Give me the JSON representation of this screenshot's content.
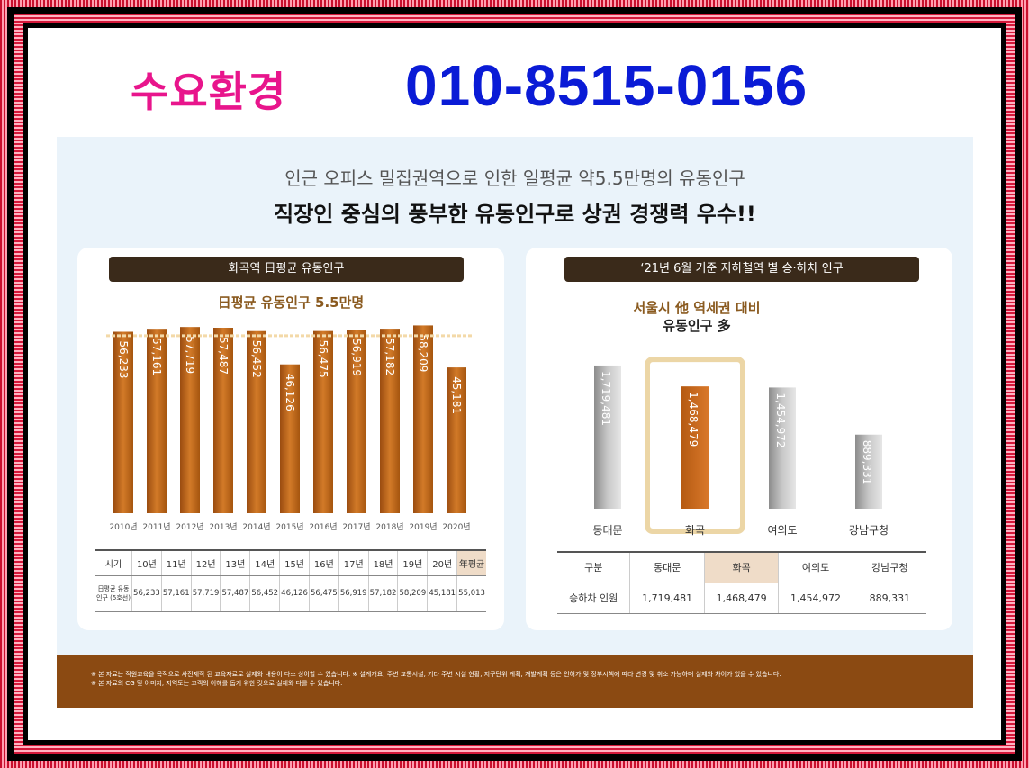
{
  "header": {
    "title": "수요환경",
    "phone": "010-8515-0156"
  },
  "headline": {
    "line1": "인근 오피스 밀집권역으로 인한 일평균 약5.5만명의 유동인구",
    "line2": "직장인 중심의 풍부한 유동인구로 상권 경쟁력 우수!!"
  },
  "left_card": {
    "title": "화곡역 日평균 유동인구",
    "subtitle": "日평균 유동인구 5.5만명",
    "table": {
      "row1_label": "시기",
      "headers": [
        "10년",
        "11년",
        "12년",
        "13년",
        "14년",
        "15년",
        "16년",
        "17년",
        "18년",
        "19년",
        "20년",
        "年평균"
      ],
      "row2_label": "日평균 유동인구 (5호선)",
      "values": [
        "56,233",
        "57,161",
        "57,719",
        "57,487",
        "56,452",
        "46,126",
        "56,475",
        "56,919",
        "57,182",
        "58,209",
        "45,181",
        "55,013"
      ]
    }
  },
  "right_card": {
    "title": "‘21년 6월 기준 지하철역 별 승·하차 인구",
    "subtitle_line1": "서울시 他 역세권 대비",
    "subtitle_line2": "유동인구 多",
    "table": {
      "headers": [
        "구분",
        "동대문",
        "화곡",
        "여의도",
        "강남구청"
      ],
      "row_label": "승하차 인원",
      "values": [
        "1,719,481",
        "1,468,479",
        "1,454,972",
        "889,331"
      ]
    }
  },
  "footer": {
    "note1": "※ 본 자료는 직원교육을 목적으로 사전제작 된 교육자료로 실제와 내용이 다소 상이할 수 있습니다. ※ 설계개요, 주변 교통시설, 기타 주변 시설 현황, 지구단위 계획, 개발계획 등은 인허가 및 정부시책에 따라 변경 및 취소 가능하며 실제와 차이가 있을 수 있습니다.",
    "note2": "※ 본 자료의 CG 및 이미지, 지역도는 고객의 이해를 돕기 위한 것으로 실제와 다를 수 있습니다."
  },
  "colors": {
    "title_pink": "#e8158c",
    "phone_blue": "#0a1bd6",
    "bar_orange": "#c8691c",
    "bar_gray": "#a8a8a8",
    "dark_title": "#3a2a1a"
  },
  "chart_data": [
    {
      "type": "bar",
      "title": "화곡역 日평균 유동인구",
      "categories": [
        "2010년",
        "2011년",
        "2012년",
        "2013년",
        "2014년",
        "2015년",
        "2016년",
        "2017년",
        "2018년",
        "2019년",
        "2020년"
      ],
      "values": [
        56233,
        57161,
        57719,
        57487,
        56452,
        46126,
        56475,
        56919,
        57182,
        58209,
        45181
      ],
      "labels": [
        "56,233",
        "57,161",
        "57,719",
        "57,487",
        "56,452",
        "46,126",
        "56,475",
        "56,919",
        "57,182",
        "58,209",
        "45,181"
      ],
      "reference_line": 55000,
      "ylim": [
        0,
        60000
      ]
    },
    {
      "type": "bar",
      "title": "‘21년 6월 기준 지하철역 별 승·하차 인구",
      "categories": [
        "동대문",
        "화곡",
        "여의도",
        "강남구청"
      ],
      "values": [
        1719481,
        1468479,
        1454972,
        889331
      ],
      "labels": [
        "1,719,481",
        "1,468,479",
        "1,454,972",
        "889,331"
      ],
      "highlight": "화곡",
      "ylim": [
        0,
        2000000
      ]
    }
  ]
}
